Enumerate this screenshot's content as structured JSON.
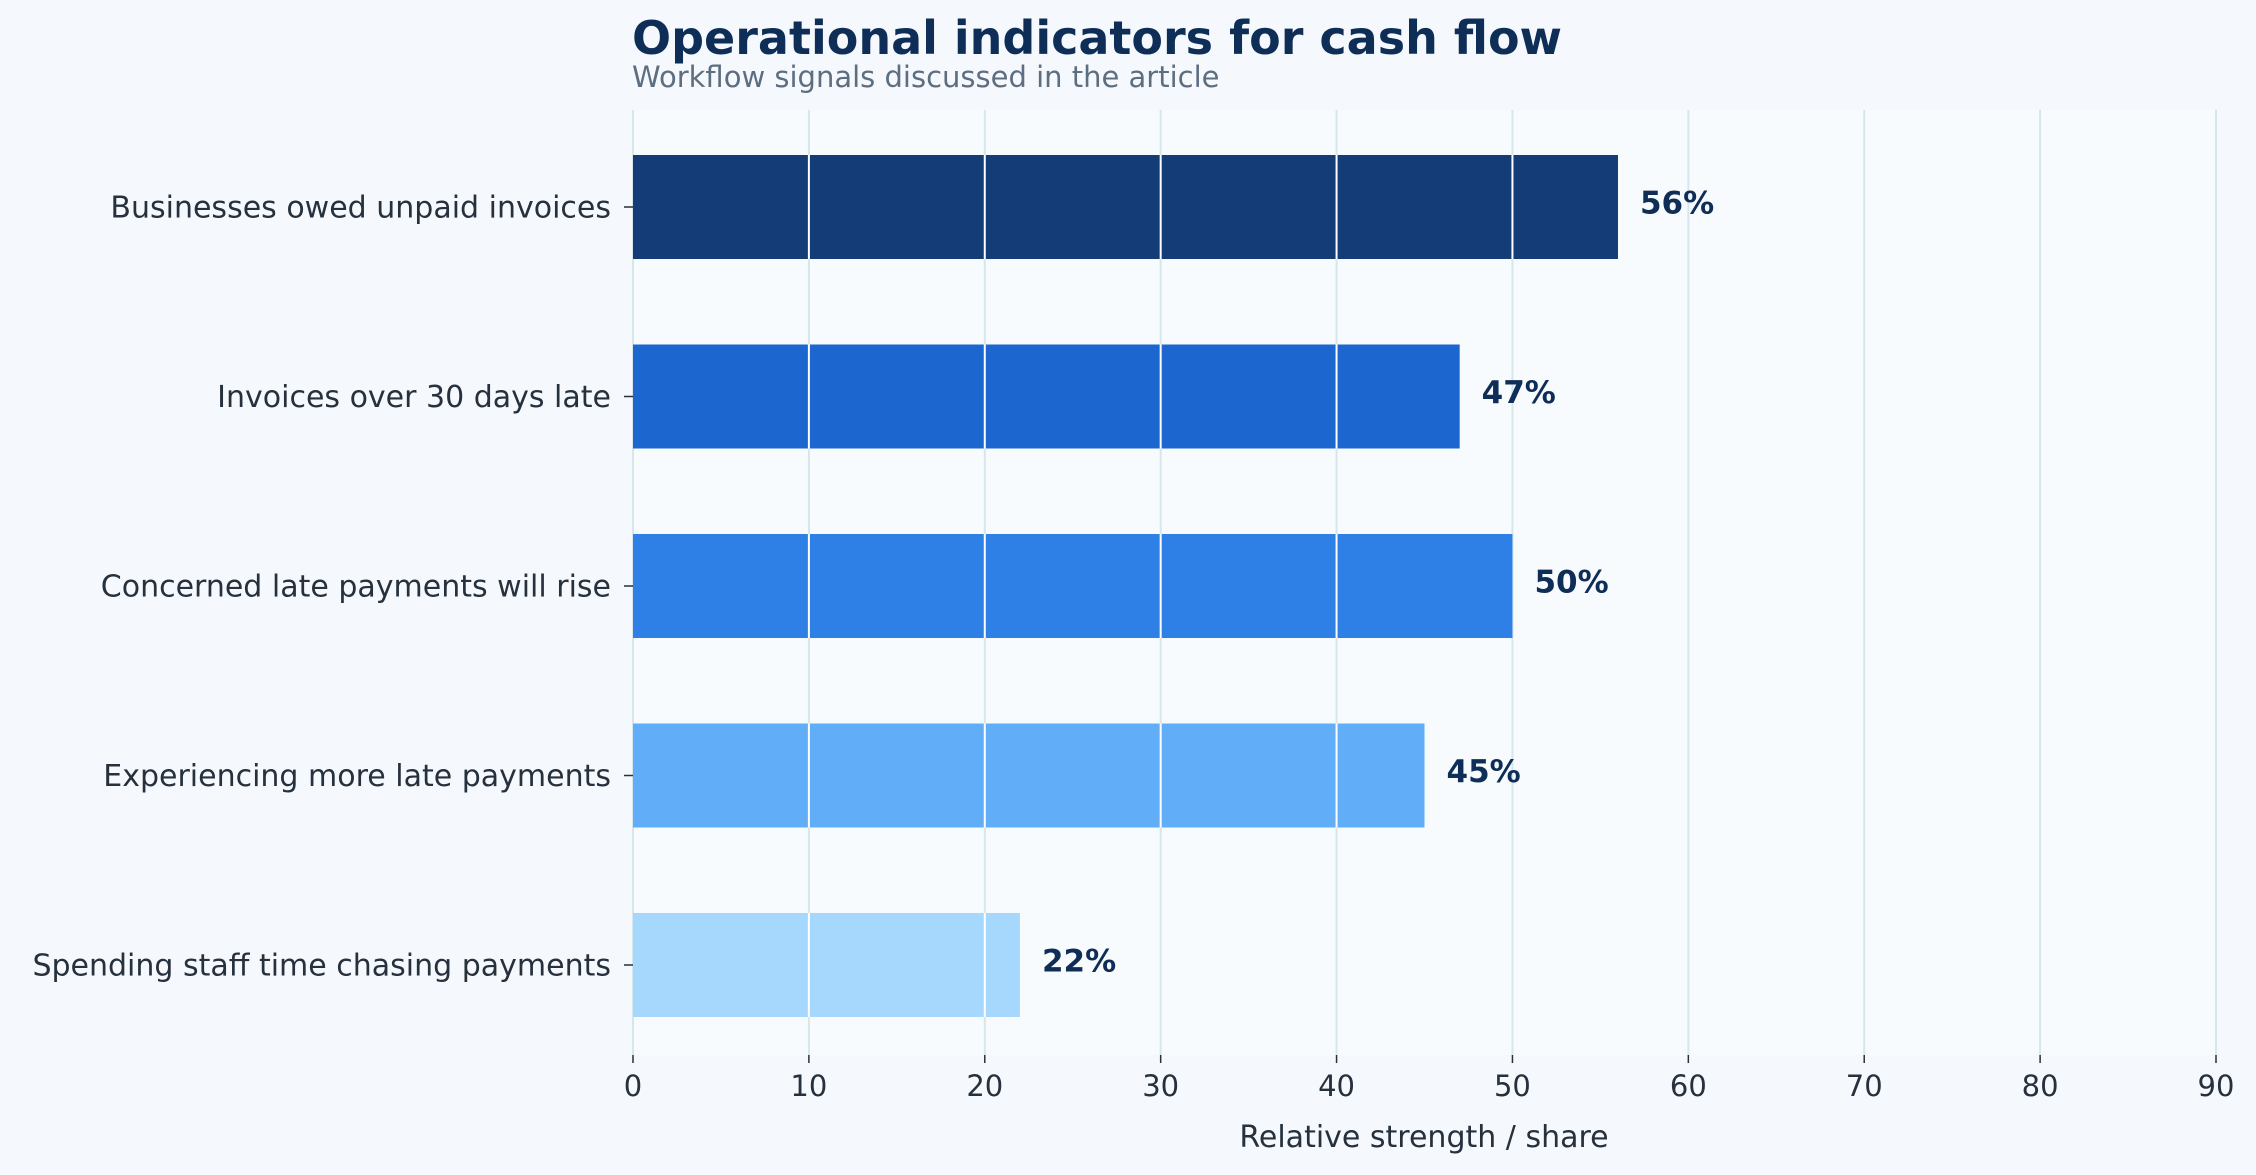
{
  "chart_data": {
    "type": "bar",
    "orientation": "horizontal",
    "title": "Operational indicators for cash flow",
    "subtitle": "Workflow signals discussed in the article",
    "xlabel": "Relative strength / share",
    "ylabel": "",
    "xlim": [
      0,
      90
    ],
    "xticks": [
      0,
      10,
      20,
      30,
      40,
      50,
      60,
      70,
      80,
      90
    ],
    "grid": true,
    "categories": [
      "Businesses owed unpaid invoices",
      "Invoices over 30 days late",
      "Concerned late payments will rise",
      "Experiencing more late payments",
      "Spending staff time chasing payments"
    ],
    "values": [
      56,
      47,
      50,
      45,
      22
    ],
    "value_labels": [
      "56%",
      "47%",
      "50%",
      "45%",
      "22%"
    ],
    "bar_colors": [
      "#143c77",
      "#1b67cf",
      "#2e7fe6",
      "#62adf7",
      "#a6d8fd"
    ]
  },
  "colors": {
    "background": "#f5f9fd",
    "plot_background": "#f8fbfe",
    "grid_line": "#d6e6ec",
    "bar_grid_line": "#ffffff",
    "title": "#0f2e57",
    "text": "#26313d"
  }
}
